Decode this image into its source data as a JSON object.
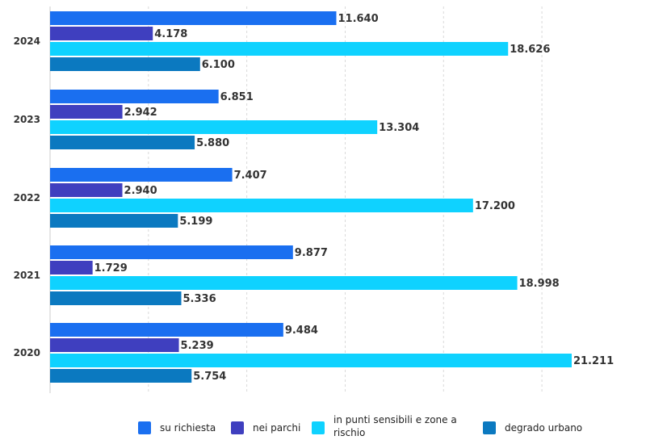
{
  "chart_data": {
    "type": "bar",
    "orientation": "horizontal",
    "categories": [
      "2024",
      "2023",
      "2022",
      "2021",
      "2020"
    ],
    "series": [
      {
        "name": "su richiesta",
        "color": "#1a6ff0",
        "values": [
          11640,
          6851,
          7407,
          9877,
          9484
        ],
        "labels": [
          "11.640",
          "6.851",
          "7.407",
          "9.877",
          "9.484"
        ]
      },
      {
        "name": "nei parchi",
        "color": "#3f3fbf",
        "values": [
          4178,
          2942,
          2940,
          1729,
          5239
        ],
        "labels": [
          "4.178",
          "2.942",
          "2.940",
          "1.729",
          "5.239"
        ]
      },
      {
        "name": "in punti sensibili e zone a rischio",
        "color": "#0fd2ff",
        "values": [
          18626,
          13304,
          17200,
          18998,
          21211
        ],
        "labels": [
          "18.626",
          "13.304",
          "17.200",
          "18.998",
          "21.211"
        ]
      },
      {
        "name": "degrado urbano",
        "color": "#0b79c0",
        "values": [
          6100,
          5880,
          5199,
          5336,
          5754
        ],
        "labels": [
          "6.100",
          "5.880",
          "5.199",
          "5.336",
          "5.754"
        ]
      }
    ],
    "xlim": [
      0,
      22500
    ],
    "grid": true,
    "legend": "bottom"
  }
}
